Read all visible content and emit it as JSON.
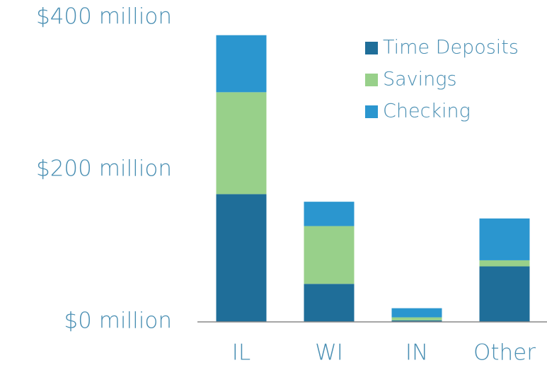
{
  "chart_data": {
    "type": "stacked_bar",
    "categories": [
      "IL",
      "WI",
      "IN",
      "Other"
    ],
    "series": [
      {
        "name": "Time Deposits",
        "color": "#1f6e99",
        "values": [
          168,
          50,
          2,
          73
        ]
      },
      {
        "name": "Savings",
        "color": "#98d08a",
        "values": [
          134,
          76,
          4,
          8
        ]
      },
      {
        "name": "Checking",
        "color": "#2b96cf",
        "values": [
          75,
          32,
          12,
          55
        ]
      }
    ],
    "ylim": [
      0,
      400
    ],
    "yticks": [
      {
        "value": 0,
        "label": "$0 million"
      },
      {
        "value": 200,
        "label": "$200 million"
      },
      {
        "value": 400,
        "label": "$400 million"
      }
    ],
    "legend": "top-right"
  }
}
